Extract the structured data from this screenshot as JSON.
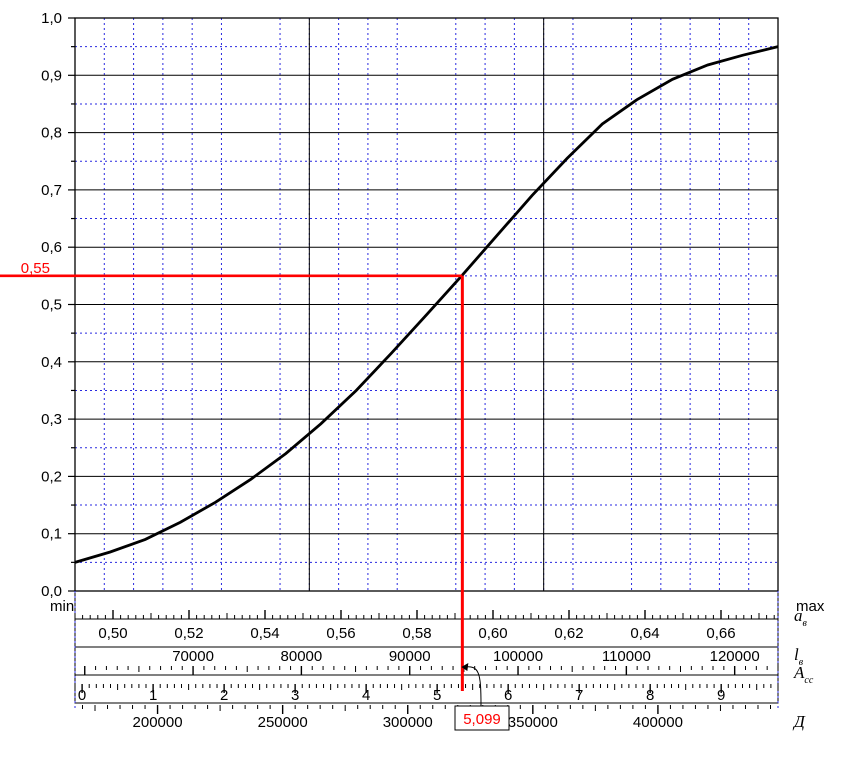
{
  "chart_data": {
    "type": "line",
    "title": "",
    "xlabel": "",
    "ylabel": "",
    "ylim": [
      0,
      1
    ],
    "yticks": [
      "0,0",
      "0,1",
      "0,2",
      "0,3",
      "0,4",
      "0,5",
      "0,6",
      "0,7",
      "0,8",
      "0,9",
      "1,0"
    ],
    "grid": true,
    "x_range_labels": {
      "min": "min",
      "max": "max"
    },
    "x": [
      0,
      0.05,
      0.1,
      0.15,
      0.2,
      0.25,
      0.3,
      0.35,
      0.4,
      0.45,
      0.5,
      0.55,
      0.6,
      0.65,
      0.7,
      0.75,
      0.8,
      0.85,
      0.9,
      0.95,
      1.0
    ],
    "series": [
      {
        "values": [
          0.05,
          0.068,
          0.09,
          0.12,
          0.155,
          0.195,
          0.24,
          0.292,
          0.35,
          0.415,
          0.482,
          0.55,
          0.62,
          0.69,
          0.755,
          0.815,
          0.858,
          0.893,
          0.918,
          0.935,
          0.95
        ],
        "color": "#000000"
      }
    ],
    "marker": {
      "y": 0.55,
      "y_label": "0,55",
      "x_fraction": 0.551,
      "value_label": "5,099",
      "color": "#ff0000"
    },
    "scales": [
      {
        "name": "a",
        "subscript": "в",
        "min": 0.49,
        "max": 0.675,
        "labeled": [
          "0,50",
          "0,52",
          "0,54",
          "0,56",
          "0,58",
          "0,60",
          "0,62",
          "0,64",
          "0,66"
        ],
        "values": [
          0.5,
          0.52,
          0.54,
          0.56,
          0.58,
          0.6,
          0.62,
          0.64,
          0.66
        ]
      },
      {
        "name": "l",
        "subscript": "в",
        "min": 59100,
        "max": 124000,
        "labeled": [
          "70000",
          "80000",
          "90000",
          "100000",
          "110000",
          "120000"
        ],
        "values": [
          70000,
          80000,
          90000,
          100000,
          110000,
          120000
        ]
      },
      {
        "name": "A",
        "subscript": "сс",
        "min": -0.1,
        "max": 9.8,
        "labeled": [
          "0",
          "1",
          "2",
          "3",
          "4",
          "5",
          "6",
          "7",
          "8",
          "9"
        ],
        "values": [
          0,
          1,
          2,
          3,
          4,
          5,
          6,
          7,
          8,
          9
        ]
      },
      {
        "name": "Д",
        "subscript": "",
        "min": 167000,
        "max": 448000,
        "labeled": [
          "200000",
          "250000",
          "300000",
          "350000",
          "400000"
        ],
        "values": [
          200000,
          250000,
          300000,
          350000,
          400000
        ]
      }
    ]
  }
}
